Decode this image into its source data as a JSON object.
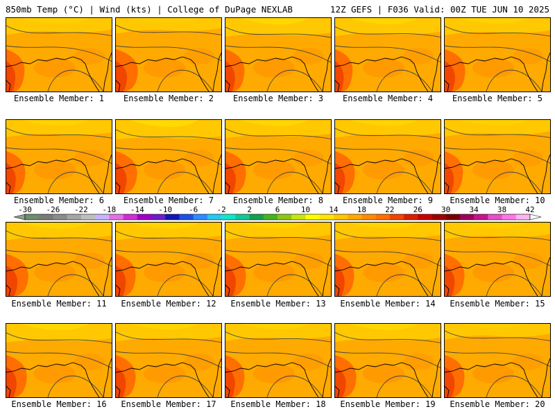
{
  "header": {
    "left": "850mb Temp (°C) | Wind (kts) | College of DuPage NEXLAB",
    "right": "12Z GEFS | F036 Valid: 00Z TUE JUN 10 2025"
  },
  "members": [
    {
      "label": "Ensemble Member: 1",
      "hot": 0.55,
      "warm": 0.3
    },
    {
      "label": "Ensemble Member: 2",
      "hot": 0.8,
      "warm": 0.2
    },
    {
      "label": "Ensemble Member: 3",
      "hot": 0.6,
      "warm": 0.5
    },
    {
      "label": "Ensemble Member: 4",
      "hot": 0.5,
      "warm": 0.45
    },
    {
      "label": "Ensemble Member: 5",
      "hot": 0.7,
      "warm": 0.35
    },
    {
      "label": "Ensemble Member: 6",
      "hot": 0.6,
      "warm": 0.35
    },
    {
      "label": "Ensemble Member: 7",
      "hot": 0.75,
      "warm": 0.6
    },
    {
      "label": "Ensemble Member: 8",
      "hot": 0.7,
      "warm": 0.45
    },
    {
      "label": "Ensemble Member: 9",
      "hot": 0.65,
      "warm": 0.4
    },
    {
      "label": "Ensemble Member: 10",
      "hot": 0.55,
      "warm": 0.3
    },
    {
      "label": "Ensemble Member: 11",
      "hot": 0.8,
      "warm": 0.4
    },
    {
      "label": "Ensemble Member: 12",
      "hot": 0.65,
      "warm": 0.4
    },
    {
      "label": "Ensemble Member: 13",
      "hot": 0.7,
      "warm": 0.35
    },
    {
      "label": "Ensemble Member: 14",
      "hot": 0.6,
      "warm": 0.35
    },
    {
      "label": "Ensemble Member: 15",
      "hot": 0.65,
      "warm": 0.3
    },
    {
      "label": "Ensemble Member: 16",
      "hot": 0.7,
      "warm": 0.5
    },
    {
      "label": "Ensemble Member: 17",
      "hot": 0.65,
      "warm": 0.4
    },
    {
      "label": "Ensemble Member: 18",
      "hot": 0.6,
      "warm": 0.35
    },
    {
      "label": "Ensemble Member: 19",
      "hot": 0.75,
      "warm": 0.45
    },
    {
      "label": "Ensemble Member: 20",
      "hot": 0.65,
      "warm": 0.2
    }
  ],
  "colorbar": {
    "tick_labels": [
      "-30",
      "-26",
      "-22",
      "-18",
      "-14",
      "-10",
      "-6",
      "-2",
      "2",
      "6",
      "10",
      "14",
      "18",
      "22",
      "26",
      "30",
      "34",
      "38",
      "42"
    ],
    "colors": [
      "#6e8c6e",
      "#7a7a7a",
      "#8c8c8c",
      "#a6a6a6",
      "#bfbfbf",
      "#c8b4ff",
      "#e66ee6",
      "#d22dd2",
      "#a000c8",
      "#6e1ec8",
      "#1414b4",
      "#1e50e6",
      "#2d8cff",
      "#28c8f0",
      "#14e6c8",
      "#14c896",
      "#14a050",
      "#46b41e",
      "#8cc814",
      "#c8e614",
      "#ffff00",
      "#ffe600",
      "#ffc800",
      "#ffaa00",
      "#ff8c00",
      "#ff6e00",
      "#f04600",
      "#dc1e00",
      "#c80000",
      "#a00000",
      "#780000",
      "#a0005a",
      "#c8148c",
      "#e650c8",
      "#ff78e6",
      "#ffb4f0"
    ]
  }
}
